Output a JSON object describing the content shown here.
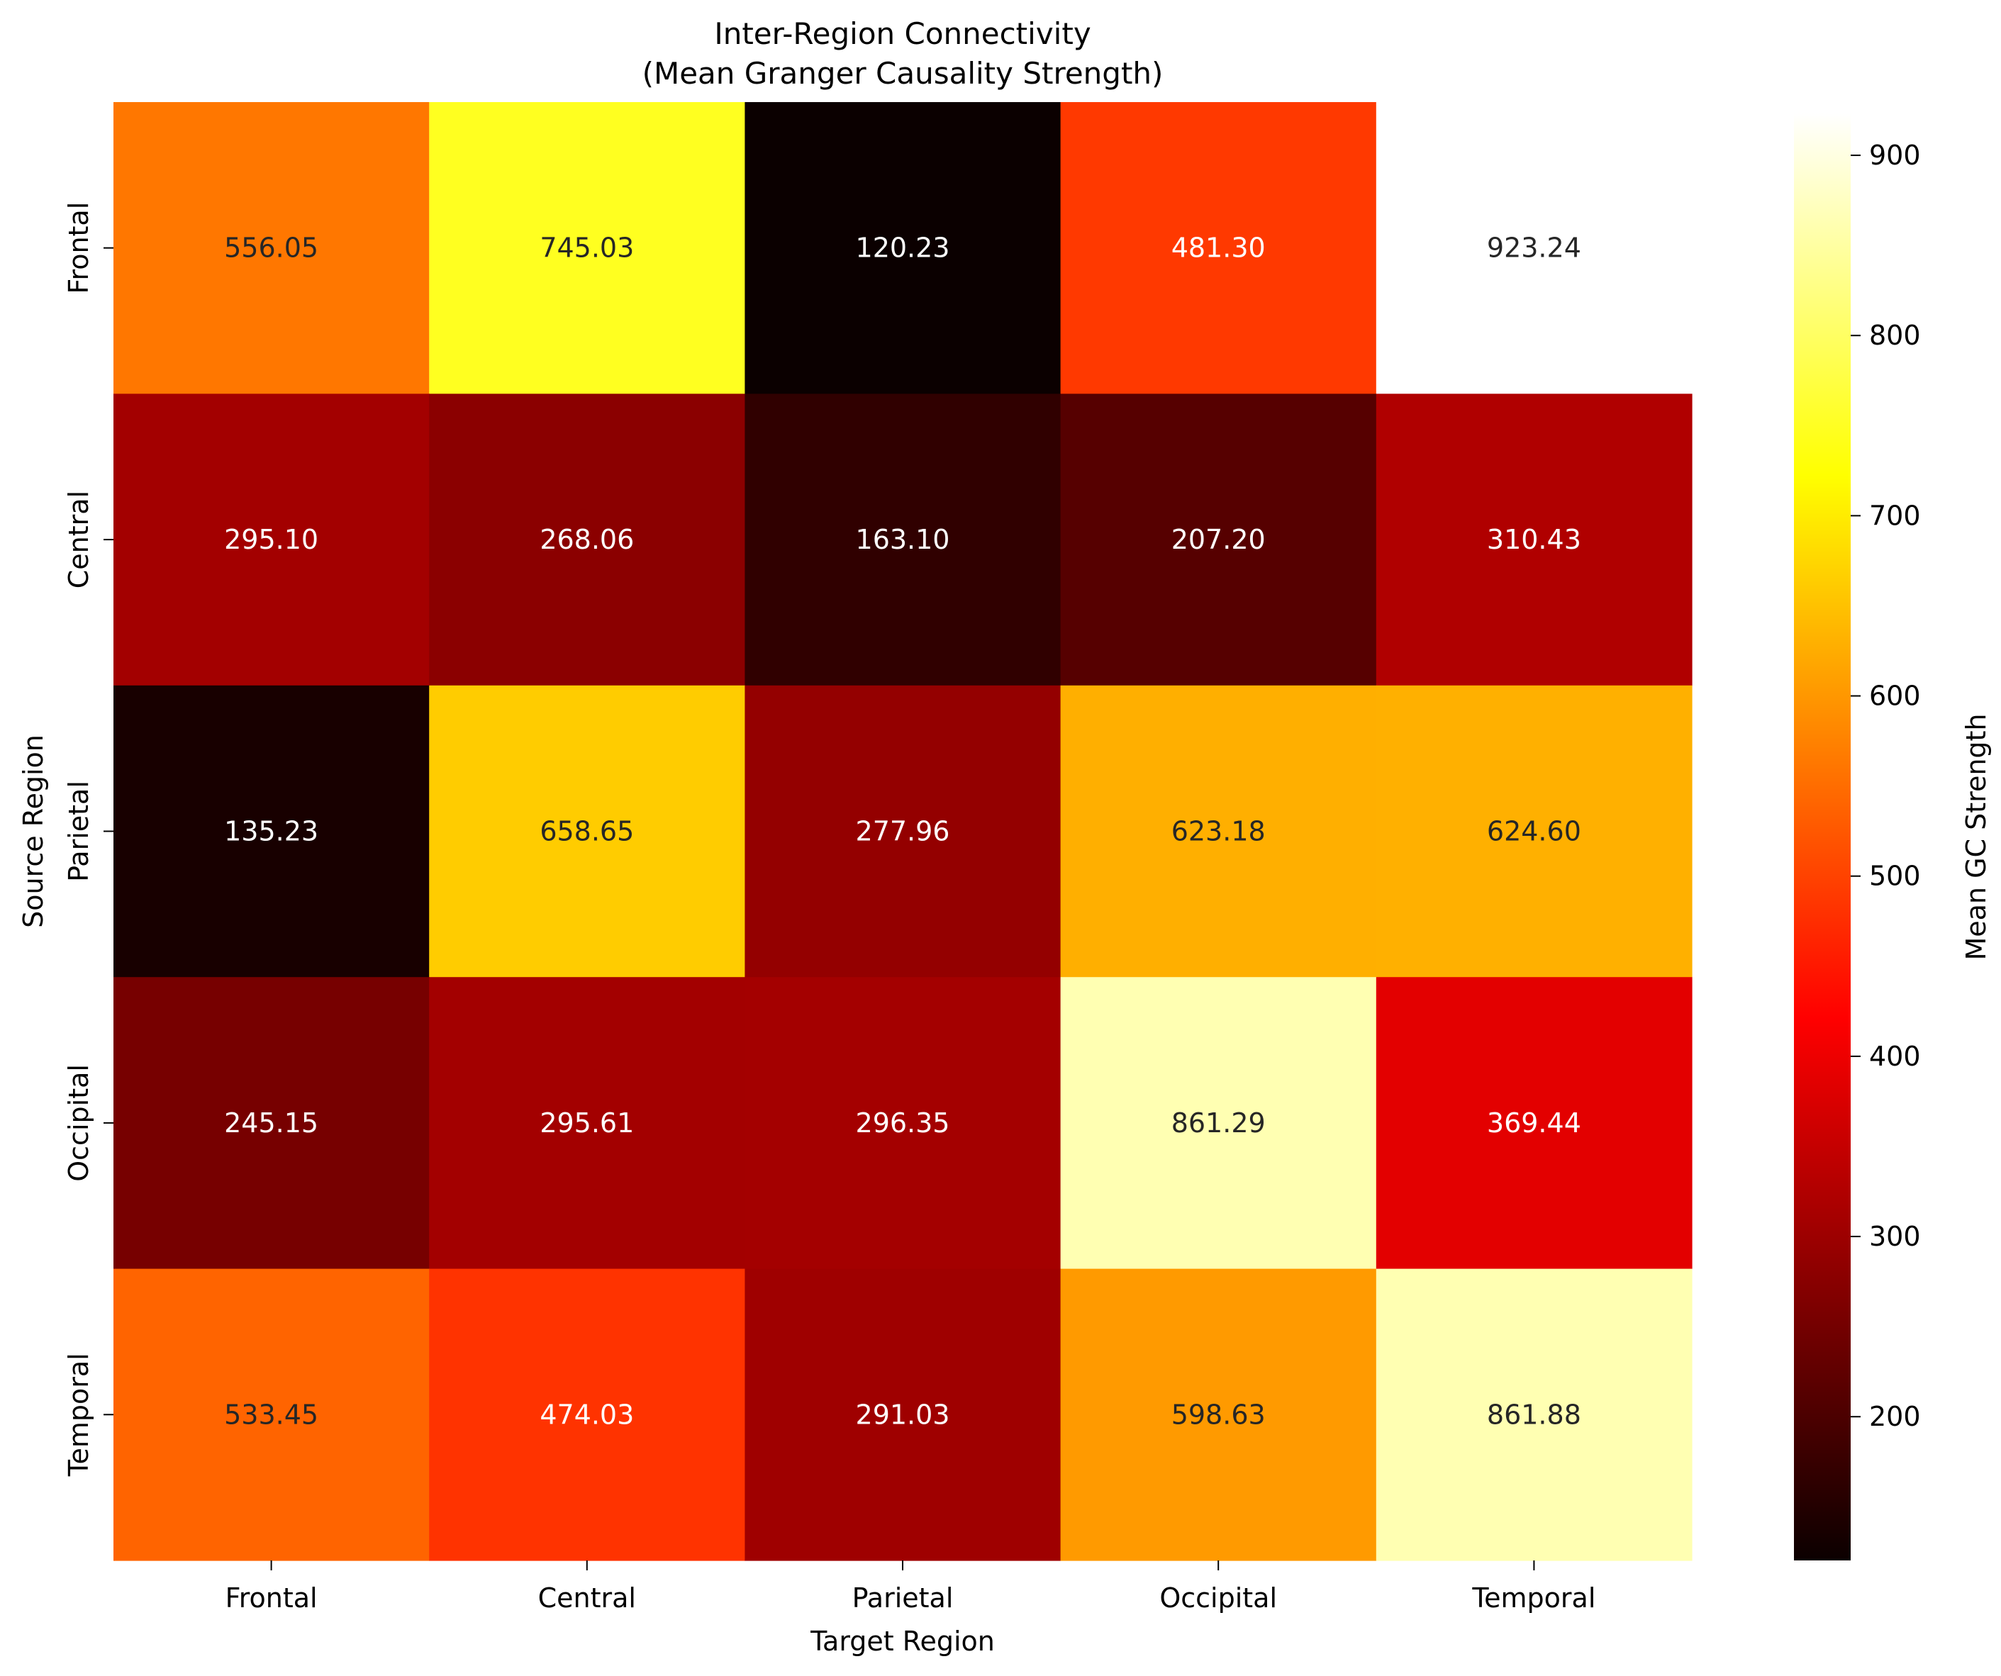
{
  "chart_data": {
    "type": "heatmap",
    "title": "Inter-Region Connectivity\n(Mean Granger Causality Strength)",
    "xlabel": "Target Region",
    "ylabel": "Source Region",
    "x_categories": [
      "Frontal",
      "Central",
      "Parietal",
      "Occipital",
      "Temporal"
    ],
    "y_categories": [
      "Frontal",
      "Central",
      "Parietal",
      "Occipital",
      "Temporal"
    ],
    "values": [
      [
        556.05,
        745.03,
        120.23,
        481.3,
        923.24
      ],
      [
        295.1,
        268.06,
        163.1,
        207.2,
        310.43
      ],
      [
        135.23,
        658.65,
        277.96,
        623.18,
        624.6
      ],
      [
        245.15,
        295.61,
        296.35,
        861.29,
        369.44
      ],
      [
        533.45,
        474.03,
        291.03,
        598.63,
        861.88
      ]
    ],
    "value_format": "2 decimals",
    "colormap": "hot",
    "colorbar": {
      "label": "Mean GC Strength",
      "min": 120.23,
      "max": 923.24,
      "ticks": [
        200,
        300,
        400,
        500,
        600,
        700,
        800,
        900
      ]
    },
    "grid": false,
    "legend": "colorbar-right"
  }
}
